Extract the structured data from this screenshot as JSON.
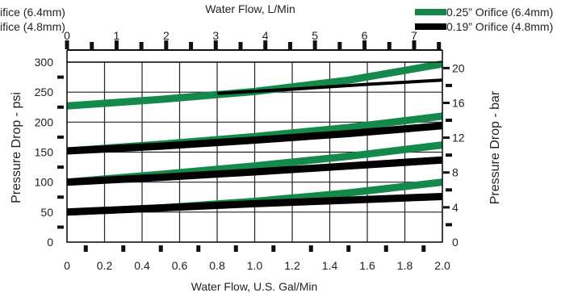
{
  "chart_data": {
    "type": "line",
    "title": "",
    "xlabel": "Water Flow, U.S. Gal/Min",
    "x2label": "Water Flow,  L/Min",
    "ylabel": "Pressure Drop - psi",
    "y2label": "Pressure Drop - bar",
    "xlim": [
      0,
      2.0
    ],
    "ylim": [
      0,
      300
    ],
    "x2lim": [
      0,
      7.57
    ],
    "y2lim": [
      0,
      20.68
    ],
    "x_ticks": [
      "0",
      "0.2",
      "0.4",
      "0.6",
      "0.8",
      "1.0",
      "1.2",
      "1.4",
      "1.6",
      "1.8",
      "2.0"
    ],
    "y_ticks": [
      "0",
      "50",
      "100",
      "150",
      "200",
      "250",
      "300"
    ],
    "x2_ticks": [
      "0",
      "1",
      "2",
      "3",
      "4",
      "5",
      "6",
      "7"
    ],
    "y2_ticks": [
      "0",
      "4",
      "8",
      "12",
      "16",
      "20"
    ],
    "grid": true,
    "legend_position": "top-right",
    "legend_left_fragments": [
      "ifice (6.4mm)",
      "ifice (4.8mm)"
    ],
    "series": [
      {
        "name": "0.25” Orifice (6.4mm)",
        "color": "#148a4a",
        "group": "50",
        "x": [
          0,
          0.5,
          1.0,
          1.5,
          2.0
        ],
        "y": [
          50,
          57,
          68,
          82,
          100
        ]
      },
      {
        "name": "0.19” Orifice (4.8mm)",
        "color": "#000000",
        "group": "50",
        "x": [
          0,
          0.5,
          1.0,
          1.5,
          2.0
        ],
        "y": [
          50,
          57,
          64,
          70,
          76
        ]
      },
      {
        "name": "0.25” Orifice (6.4mm)",
        "color": "#148a4a",
        "group": "100",
        "x": [
          0,
          0.5,
          1.0,
          1.5,
          2.0
        ],
        "y": [
          100,
          113,
          127,
          143,
          162
        ]
      },
      {
        "name": "0.19” Orifice (4.8mm)",
        "color": "#000000",
        "group": "100",
        "x": [
          0,
          0.5,
          1.0,
          1.5,
          2.0
        ],
        "y": [
          100,
          108,
          117,
          127,
          137
        ]
      },
      {
        "name": "0.25” Orifice (6.4mm)",
        "color": "#148a4a",
        "group": "150",
        "x": [
          0,
          0.5,
          1.0,
          1.5,
          2.0
        ],
        "y": [
          152,
          163,
          176,
          191,
          210
        ]
      },
      {
        "name": "0.19” Orifice (4.8mm)",
        "color": "#000000",
        "group": "150",
        "x": [
          0,
          0.5,
          1.0,
          1.5,
          2.0
        ],
        "y": [
          152,
          160,
          170,
          181,
          194
        ]
      },
      {
        "name": "0.25” Orifice (6.4mm)",
        "color": "#148a4a",
        "group": "225",
        "x": [
          0,
          0.5,
          1.0,
          1.5,
          2.0
        ],
        "y": [
          227,
          238,
          251,
          270,
          297
        ]
      },
      {
        "name": "0.19” Orifice (4.8mm)",
        "color": "#000000",
        "group": "225",
        "x": [
          0.8,
          1.2,
          1.6,
          2.0
        ],
        "y": [
          248,
          255,
          263,
          270
        ]
      }
    ]
  }
}
